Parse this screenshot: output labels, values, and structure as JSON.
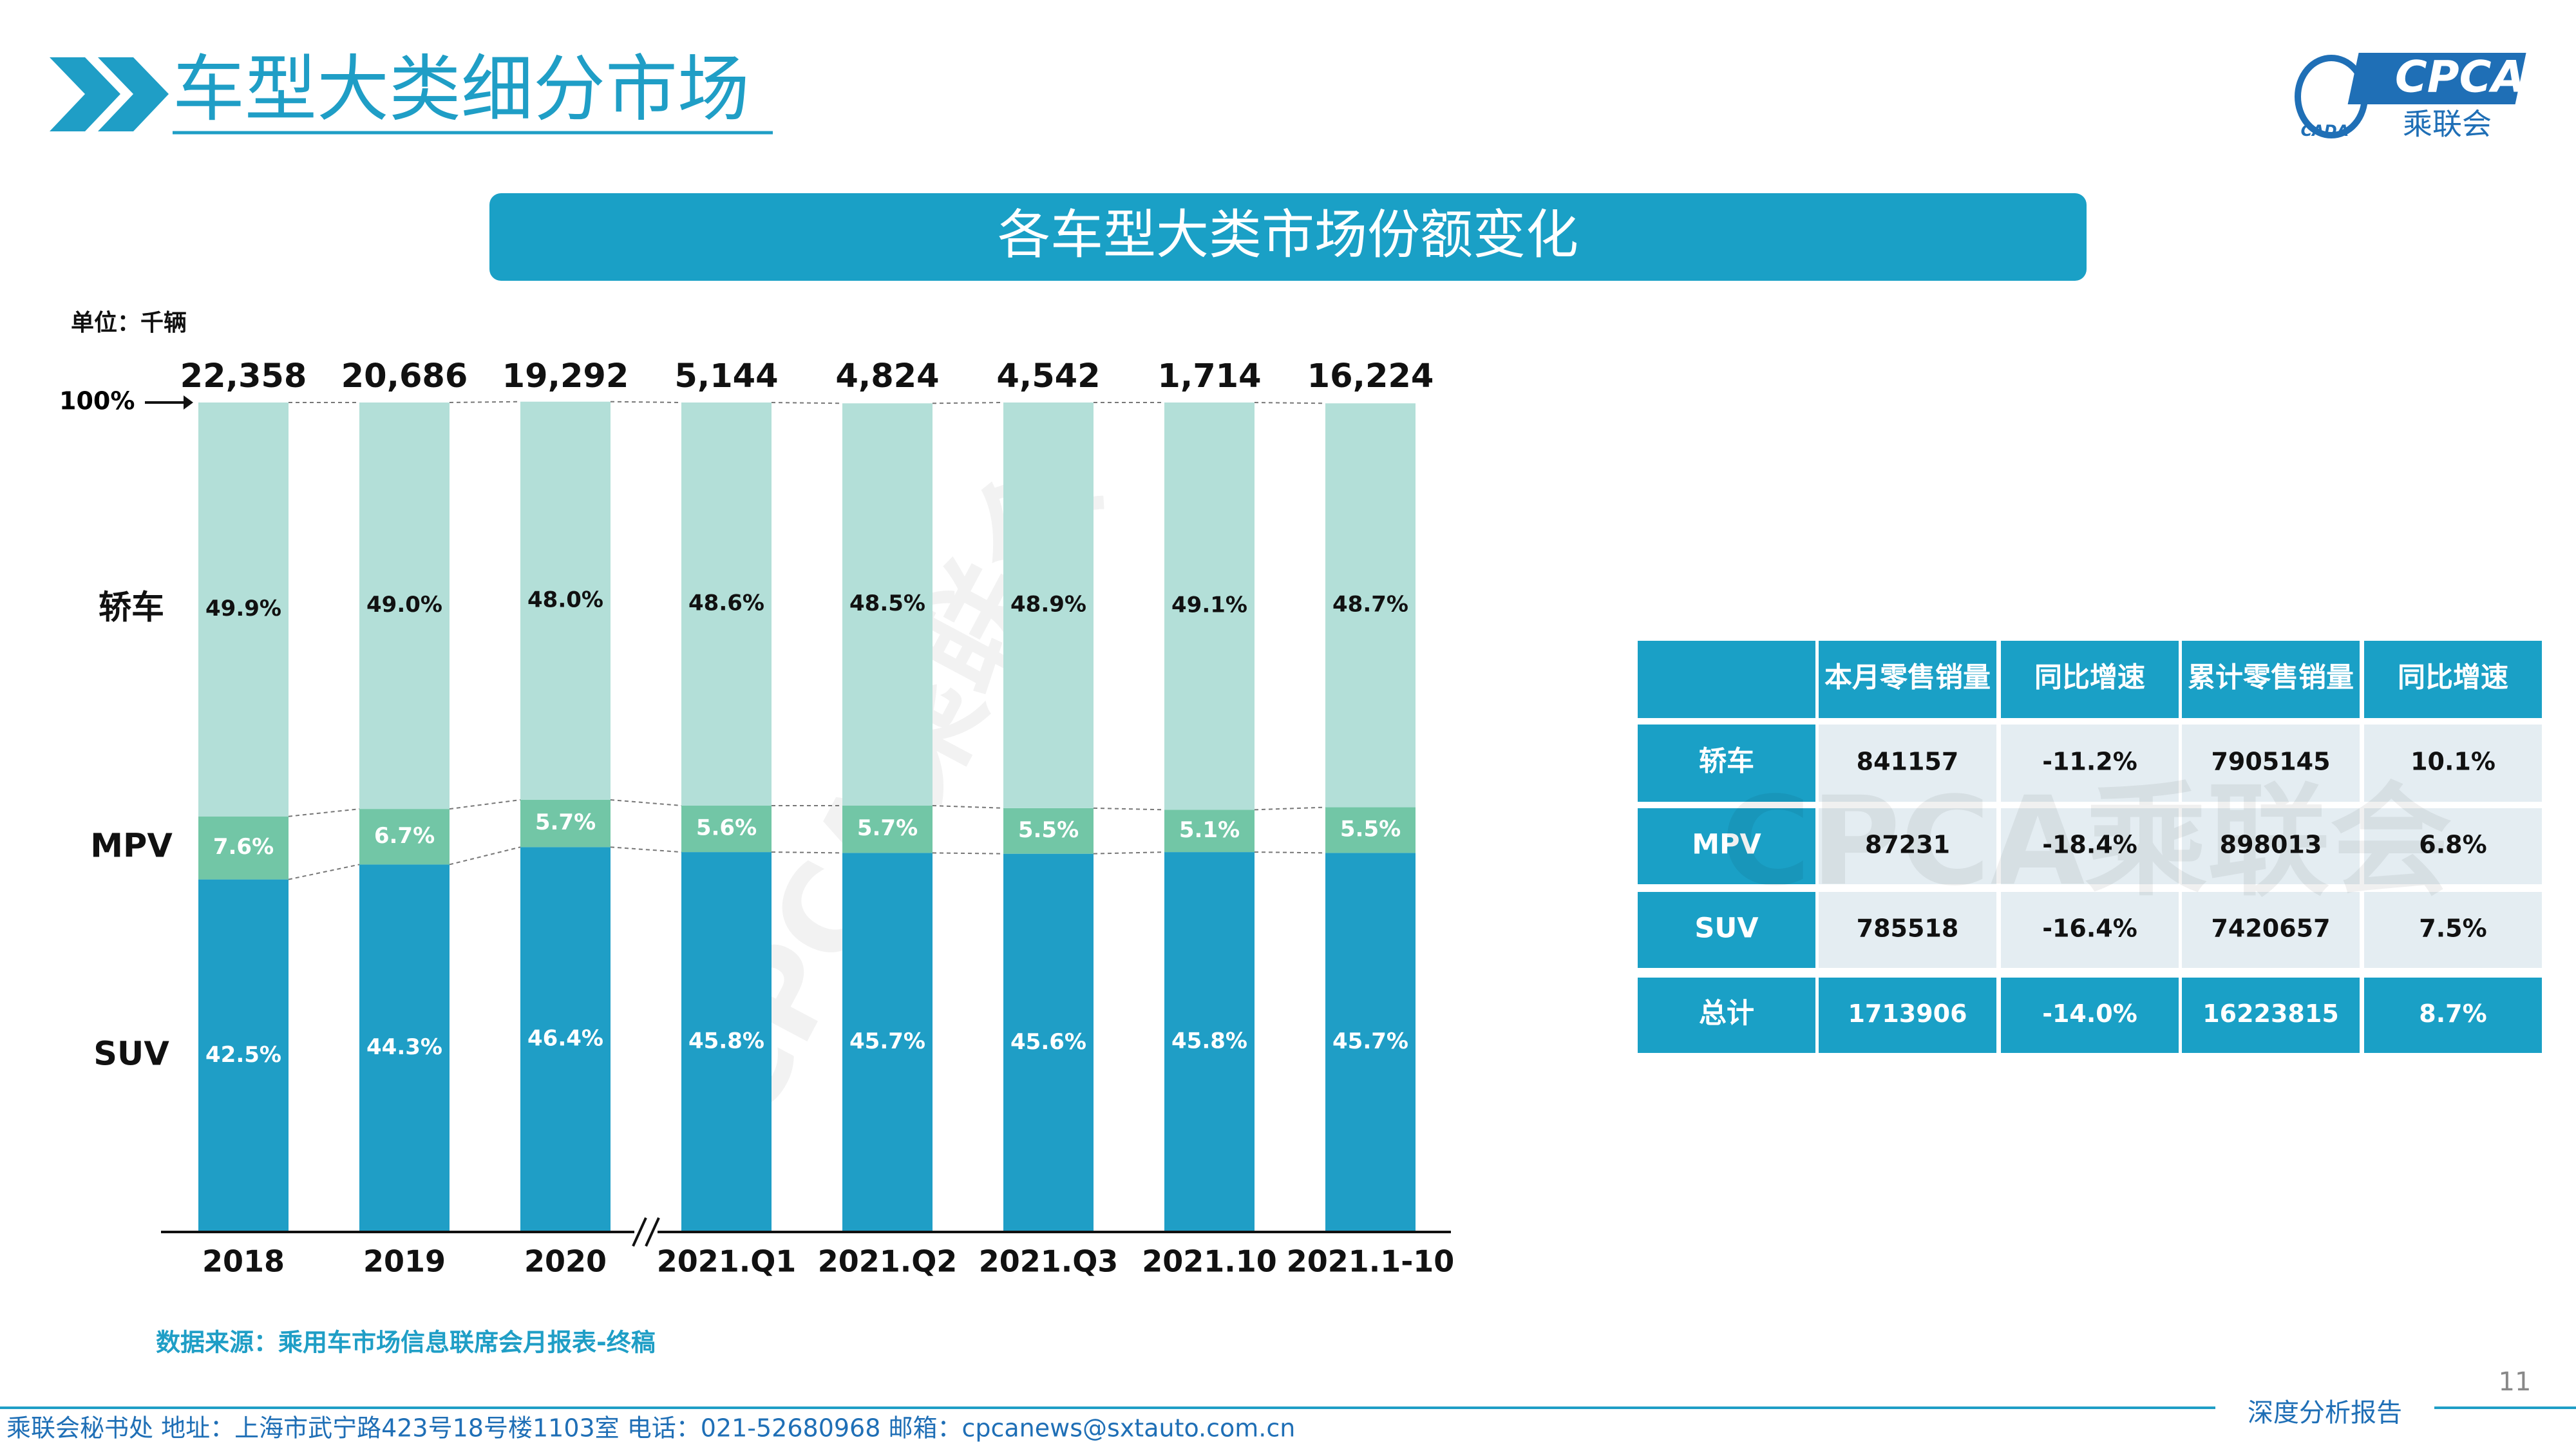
{
  "header": {
    "title": "车型大类细分市场",
    "banner": "各车型大类市场份额变化",
    "logo": {
      "main": "CPCA",
      "sub": "乘联会",
      "small": "CADA"
    }
  },
  "chart_data": {
    "type": "stacked_bar",
    "unit": "单位：千辆",
    "categories": [
      "2018",
      "2019",
      "2020",
      "2021.Q1",
      "2021.Q2",
      "2021.Q3",
      "2021.10",
      "2021.1-10"
    ],
    "series": [
      {
        "name": "SUV",
        "color": "#1f9ec6",
        "label_color": "#ffffff",
        "values": [
          42.5,
          44.3,
          46.4,
          45.8,
          45.7,
          45.6,
          45.8,
          45.7
        ],
        "value_labels": [
          "42.5%",
          "44.3%",
          "46.4%",
          "45.8%",
          "45.7%",
          "45.6%",
          "45.8%",
          "45.7%"
        ]
      },
      {
        "name": "MPV",
        "color": "#72c6a6",
        "label_color": "#ffffff",
        "values": [
          7.6,
          6.7,
          5.7,
          5.6,
          5.7,
          5.5,
          5.1,
          5.5
        ],
        "value_labels": [
          "7.6%",
          "6.7%",
          "5.7%",
          "5.6%",
          "5.7%",
          "5.5%",
          "5.1%",
          "5.5%"
        ]
      },
      {
        "name": "轿车",
        "color": "#b3dfd8",
        "label_color": "#111111",
        "values": [
          49.9,
          49,
          48,
          48.6,
          48.5,
          48.9,
          49.1,
          48.7
        ],
        "value_labels": [
          "49.9%",
          "49.0%",
          "48.0%",
          "48.6%",
          "48.5%",
          "48.9%",
          "49.1%",
          "48.7%"
        ]
      }
    ],
    "totals": [
      {
        "value": 22358,
        "label": "22,358"
      },
      {
        "value": 20686,
        "label": "20,686"
      },
      {
        "value": 19292,
        "label": "19,292"
      },
      {
        "value": 5144,
        "label": "5,144"
      },
      {
        "value": 4824,
        "label": "4,824"
      },
      {
        "value": 4542,
        "label": "4,542"
      },
      {
        "value": 1714,
        "label": "1,714"
      },
      {
        "value": 16224,
        "label": "16,224"
      }
    ],
    "ylim": [
      0,
      100
    ],
    "yticks": [
      {
        "value": 100,
        "label": "100%"
      }
    ],
    "source": "数据来源：乘用车市场信息联席会月报表-终稿"
  },
  "table": {
    "columns": [
      "本月零售销量",
      "同比增速",
      "累计零售销量",
      "同比增速"
    ],
    "rows": [
      {
        "label": "轿车",
        "cells": [
          "841157",
          "-11.2%",
          "7905145",
          "10.1%"
        ]
      },
      {
        "label": "MPV",
        "cells": [
          "87231",
          "-18.4%",
          "898013",
          "6.8%"
        ]
      },
      {
        "label": "SUV",
        "cells": [
          "785518",
          "-16.4%",
          "7420657",
          "7.5%"
        ]
      },
      {
        "label": "总计",
        "cells": [
          "1713906",
          "-14.0%",
          "16223815",
          "8.7%"
        ]
      }
    ]
  },
  "watermark": "CPCA乘联会",
  "footer": {
    "contact": "乘联会秘书处   地址：上海市武宁路423号18号楼1103室   电话：021-52680968    邮箱：cpcanews@sxtauto.com.cn",
    "tag": "深度分析报告",
    "page": "11"
  }
}
